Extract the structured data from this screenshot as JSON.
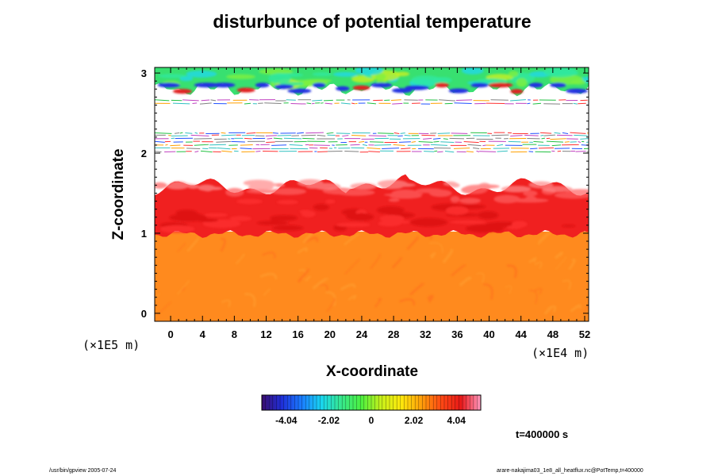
{
  "chart_data": {
    "type": "heatmap",
    "title": "disturbunce of potential temperature",
    "xlabel": "X-coordinate",
    "ylabel": "Z-coordinate",
    "x_scale_label": "(×1E4 m)",
    "y_scale_label": "(×1E5 m)",
    "xlim": [
      -2,
      52.5
    ],
    "ylim": [
      -0.1,
      3.07
    ],
    "x_ticks": [
      0,
      4,
      8,
      12,
      16,
      20,
      24,
      28,
      32,
      36,
      40,
      44,
      48,
      52
    ],
    "y_ticks": [
      0,
      1,
      2,
      3
    ],
    "colorbar": {
      "range": [
        -5.2,
        5.2
      ],
      "tick_values": [
        -4.04,
        -2.02,
        0,
        2.02,
        4.04
      ],
      "tick_labels": [
        "-4.04",
        "-2.02",
        "0",
        "2.02",
        "4.04"
      ],
      "colors": [
        "#3a0c6e",
        "#1f2fd8",
        "#1a7cff",
        "#19d6f0",
        "#37e88c",
        "#4cf040",
        "#c8f01a",
        "#ffe90c",
        "#ffa00a",
        "#ff4a14",
        "#e81818",
        "#ff9ac0"
      ]
    },
    "regions": [
      {
        "z_range": [
          -0.1,
          1.0
        ],
        "description_value": 3.3,
        "label": "orange"
      },
      {
        "z_range": [
          1.0,
          1.65
        ],
        "description_value": 4.6,
        "label": "red"
      },
      {
        "z_range": [
          1.65,
          2.6
        ],
        "description_value": null,
        "label": "white"
      },
      {
        "z_range": [
          2.6,
          3.07
        ],
        "description_value": 0.5,
        "label": "green-blue"
      }
    ]
  },
  "annotations": {
    "time": "t=400000 s",
    "footer_left": "/usr/bin/gpview 2005-07-24",
    "footer_right": "arare-nakajima03_1e8_all_heatflux.nc@PotTemp,t=400000"
  }
}
